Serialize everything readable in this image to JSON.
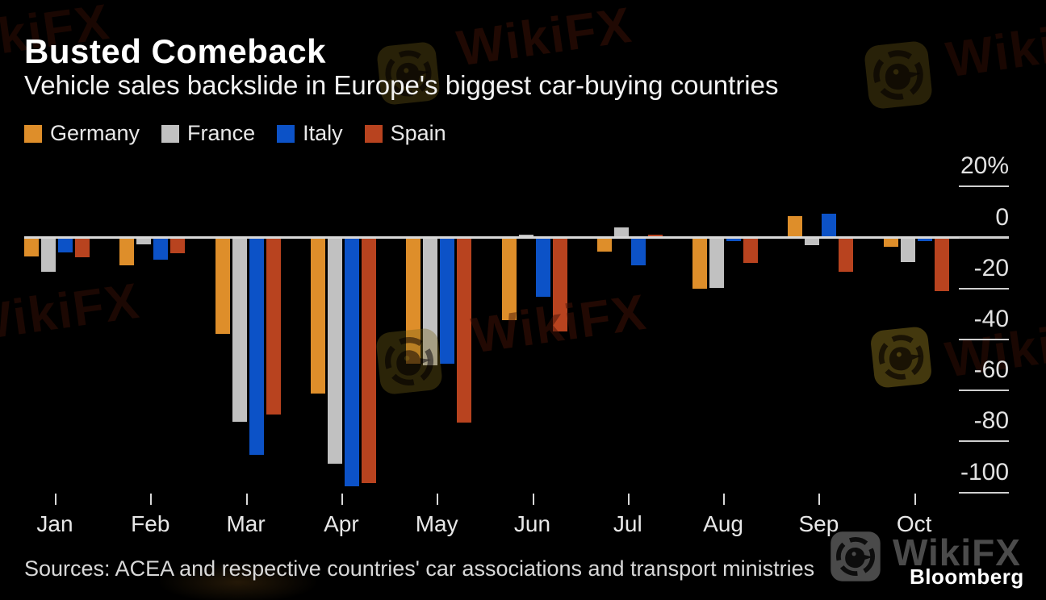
{
  "chart_data": {
    "type": "bar",
    "title": "Busted Comeback",
    "subtitle": "Vehicle sales backslide in Europe's biggest car-buying countries",
    "unit": "%",
    "categories": [
      "Jan",
      "Feb",
      "Mar",
      "Apr",
      "May",
      "Jun",
      "Jul",
      "Aug",
      "Sep",
      "Oct"
    ],
    "series": [
      {
        "name": "Germany",
        "color": "#DE8E2A",
        "values": [
          -7.3,
          -10.8,
          -37.7,
          -61.1,
          -49.5,
          -32.3,
          -5.4,
          -20.0,
          8.4,
          -3.6
        ]
      },
      {
        "name": "France",
        "color": "#C1C1C1",
        "values": [
          -13.4,
          -2.7,
          -72.2,
          -88.8,
          -50.3,
          1.2,
          3.9,
          -19.8,
          -3.0,
          -9.5
        ]
      },
      {
        "name": "Italy",
        "color": "#0C52C7",
        "values": [
          -5.9,
          -8.8,
          -85.4,
          -97.6,
          -49.6,
          -23.1,
          -11.0,
          -0.4,
          9.5,
          -0.2
        ]
      },
      {
        "name": "Spain",
        "color": "#B8431F",
        "values": [
          -7.6,
          -6.0,
          -69.3,
          -96.5,
          -72.7,
          -36.7,
          1.1,
          -10.1,
          -13.5,
          -21.0
        ]
      }
    ],
    "y_ticks": [
      20,
      0,
      -20,
      -40,
      -60,
      -80,
      -100
    ],
    "y_tick_labels": [
      "20%",
      "0",
      "-20",
      "-40",
      "-60",
      "-80",
      "-100"
    ],
    "ylim": [
      -107,
      25
    ],
    "xlabel": "",
    "ylabel": "",
    "grid": false,
    "legend_position": "top-left",
    "baseline_color": "#d9d9d9"
  },
  "footer": {
    "sources": "Sources: ACEA and respective countries' car associations and transport ministries",
    "brand": "Bloomberg"
  },
  "watermark": {
    "text": "WikiFX"
  }
}
